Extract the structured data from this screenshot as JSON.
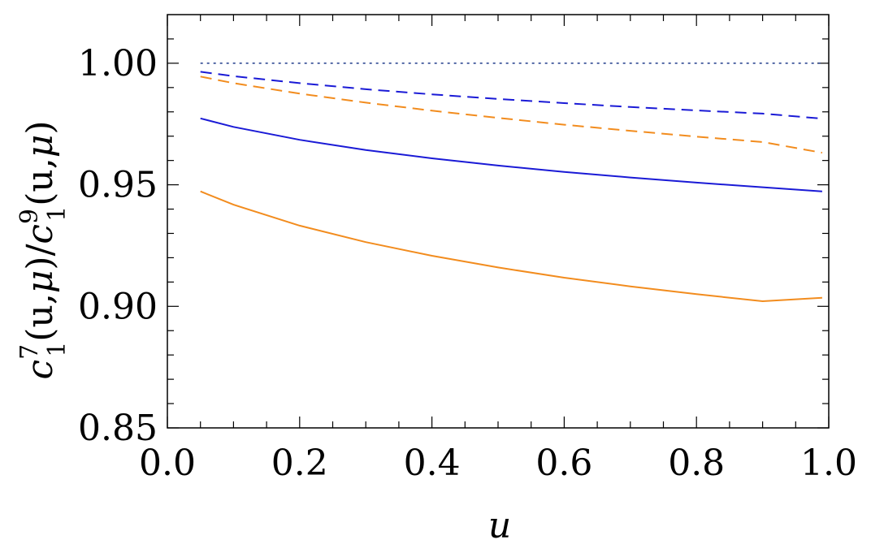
{
  "chart_data": {
    "type": "line",
    "title": "",
    "xlabel": "u",
    "ylabel": {
      "c1": "c",
      "sup7": "7",
      "sub1a": "1",
      "mid": "(u,",
      "mu1": "μ",
      "close": ")/",
      "c2": "c",
      "sup9": "9",
      "sub1b": "1",
      "mid2": "(u,",
      "mu2": "μ",
      "end": ")"
    },
    "xlim": [
      0.0,
      1.0
    ],
    "ylim": [
      0.85,
      1.02
    ],
    "xticks": [
      "0.0",
      "0.2",
      "0.4",
      "0.6",
      "0.8",
      "1.0"
    ],
    "yticks": [
      "0.85",
      "0.90",
      "0.95",
      "1.00"
    ],
    "grid": false,
    "series": [
      {
        "color": "#1f3b8a",
        "style": "dotted",
        "x": [
          0.05,
          0.1,
          0.2,
          0.3,
          0.4,
          0.5,
          0.6,
          0.7,
          0.8,
          0.9,
          0.99
        ],
        "values": [
          1.0,
          1.0,
          1.0,
          1.0,
          1.0,
          1.0,
          1.0,
          1.0,
          1.0,
          1.0,
          1.0
        ]
      },
      {
        "color": "#1a1ad6",
        "style": "dashed",
        "x": [
          0.05,
          0.1,
          0.2,
          0.3,
          0.4,
          0.5,
          0.6,
          0.7,
          0.8,
          0.9,
          0.99
        ],
        "values": [
          0.9965,
          0.9947,
          0.9918,
          0.9893,
          0.9872,
          0.9853,
          0.9836,
          0.982,
          0.9806,
          0.9793,
          0.9772
        ]
      },
      {
        "color": "#f28c1e",
        "style": "dashed",
        "x": [
          0.05,
          0.1,
          0.2,
          0.3,
          0.4,
          0.5,
          0.6,
          0.7,
          0.8,
          0.9,
          0.99
        ],
        "values": [
          0.9945,
          0.9918,
          0.9875,
          0.9838,
          0.9805,
          0.9775,
          0.9747,
          0.9722,
          0.9698,
          0.9676,
          0.9632
        ]
      },
      {
        "color": "#1a1ad6",
        "style": "solid",
        "x": [
          0.05,
          0.1,
          0.2,
          0.3,
          0.4,
          0.5,
          0.6,
          0.7,
          0.8,
          0.9,
          0.99
        ],
        "values": [
          0.9773,
          0.9738,
          0.9685,
          0.9643,
          0.9609,
          0.9579,
          0.9553,
          0.953,
          0.9509,
          0.949,
          0.9473
        ]
      },
      {
        "color": "#f28c1e",
        "style": "solid",
        "x": [
          0.05,
          0.1,
          0.2,
          0.3,
          0.4,
          0.5,
          0.6,
          0.7,
          0.8,
          0.9,
          0.99
        ],
        "values": [
          0.9473,
          0.9418,
          0.9332,
          0.9264,
          0.9208,
          0.916,
          0.9118,
          0.9082,
          0.905,
          0.9021,
          0.9035
        ]
      }
    ]
  }
}
